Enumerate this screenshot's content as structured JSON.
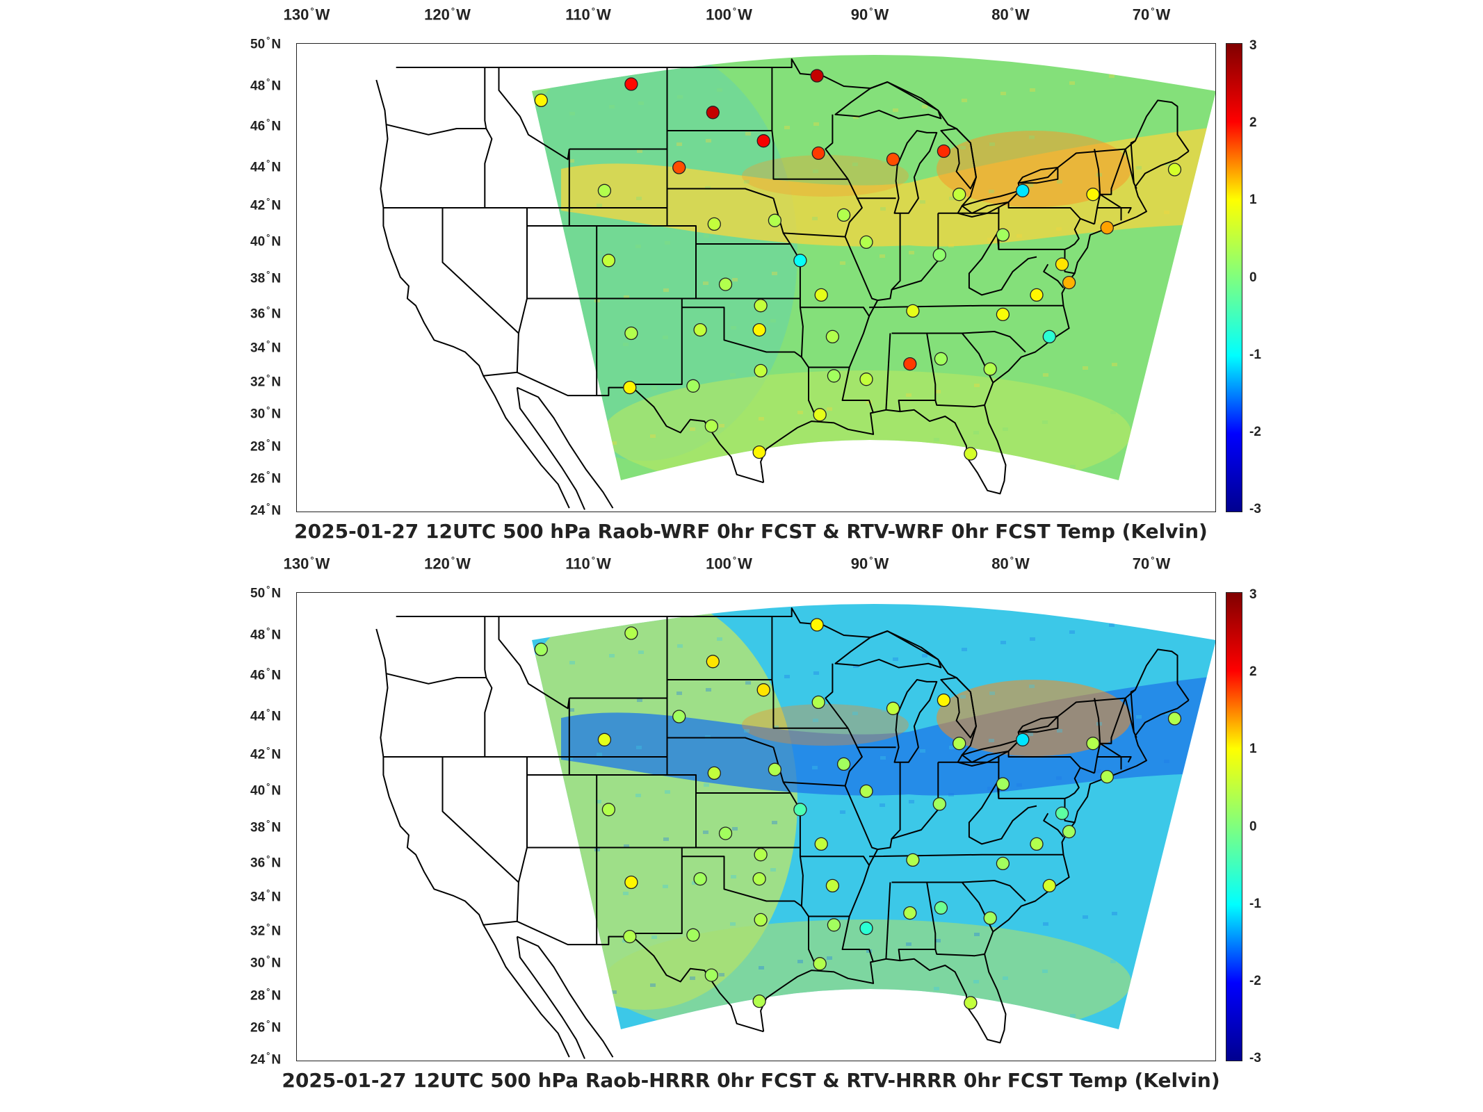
{
  "lon_labels": [
    "130",
    "120",
    "110",
    "100",
    "90",
    "80",
    "70"
  ],
  "lat_labels": [
    "50",
    "48",
    "46",
    "44",
    "42",
    "40",
    "38",
    "36",
    "34",
    "32",
    "30",
    "28",
    "26",
    "24"
  ],
  "lon_suffix": "W",
  "lat_suffix": "N",
  "degree_symbol": "°",
  "colorbar": {
    "ticks": [
      "3",
      "2",
      "1",
      "0",
      "-1",
      "-2",
      "-3"
    ],
    "colormap": "jet",
    "colors": [
      "#00008f",
      "#0000ff",
      "#00ffff",
      "#7fff7f",
      "#ffff00",
      "#ff0000",
      "#800000"
    ]
  },
  "panels": [
    {
      "title": "2025-01-27 12UTC 500 hPa Raob-WRF 0hr FCST & RTV-WRF 0hr FCST Temp (Kelvin)",
      "field_colors": {
        "base": "#84e07a",
        "west": "#6cd6a0",
        "band": "#f5d640",
        "hot": "#f59a2a",
        "south": "#b8e860"
      },
      "stations": [
        {
          "lon": -113.0,
          "lat": 47.4,
          "value": 0.8
        },
        {
          "lon": -106.6,
          "lat": 48.2,
          "value": 2.2
        },
        {
          "lon": -100.8,
          "lat": 46.8,
          "value": 2.6
        },
        {
          "lon": -97.2,
          "lat": 45.4,
          "value": 2.3
        },
        {
          "lon": -93.4,
          "lat": 48.6,
          "value": 2.6
        },
        {
          "lon": -93.3,
          "lat": 44.8,
          "value": 1.9
        },
        {
          "lon": -88.0,
          "lat": 44.5,
          "value": 1.8
        },
        {
          "lon": -84.4,
          "lat": 44.9,
          "value": 2.0
        },
        {
          "lon": -103.2,
          "lat": 44.1,
          "value": 1.8
        },
        {
          "lon": -108.5,
          "lat": 42.9,
          "value": 0.3
        },
        {
          "lon": -100.7,
          "lat": 41.1,
          "value": 0.4
        },
        {
          "lon": -96.4,
          "lat": 41.3,
          "value": 0.3
        },
        {
          "lon": -91.5,
          "lat": 41.6,
          "value": 0.3
        },
        {
          "lon": -83.3,
          "lat": 42.7,
          "value": 0.4
        },
        {
          "lon": -78.8,
          "lat": 42.9,
          "value": -0.9
        },
        {
          "lon": -73.8,
          "lat": 42.7,
          "value": 0.8
        },
        {
          "lon": -68.0,
          "lat": 44.0,
          "value": 0.5
        },
        {
          "lon": -72.8,
          "lat": 40.9,
          "value": 1.3
        },
        {
          "lon": -80.2,
          "lat": 40.5,
          "value": 0.2
        },
        {
          "lon": -76.0,
          "lat": 38.9,
          "value": 0.9
        },
        {
          "lon": -75.5,
          "lat": 37.9,
          "value": 1.2
        },
        {
          "lon": -77.8,
          "lat": 37.2,
          "value": 0.8
        },
        {
          "lon": -86.6,
          "lat": 36.3,
          "value": 0.6
        },
        {
          "lon": -80.2,
          "lat": 36.1,
          "value": 0.7
        },
        {
          "lon": -76.9,
          "lat": 34.8,
          "value": -0.5
        },
        {
          "lon": -81.1,
          "lat": 32.9,
          "value": 0.3
        },
        {
          "lon": -86.8,
          "lat": 33.2,
          "value": 1.9
        },
        {
          "lon": -84.6,
          "lat": 33.5,
          "value": 0.2
        },
        {
          "lon": -89.9,
          "lat": 32.3,
          "value": 0.4
        },
        {
          "lon": -92.2,
          "lat": 32.5,
          "value": 0.2
        },
        {
          "lon": -92.3,
          "lat": 34.8,
          "value": 0.3
        },
        {
          "lon": -89.9,
          "lat": 40.1,
          "value": 0.3
        },
        {
          "lon": -84.7,
          "lat": 39.4,
          "value": 0.1
        },
        {
          "lon": -93.1,
          "lat": 37.2,
          "value": 0.6
        },
        {
          "lon": -94.6,
          "lat": 39.1,
          "value": -0.7
        },
        {
          "lon": -97.4,
          "lat": 36.6,
          "value": 0.4
        },
        {
          "lon": -97.5,
          "lat": 35.2,
          "value": 0.8
        },
        {
          "lon": -101.7,
          "lat": 35.2,
          "value": 0.4
        },
        {
          "lon": -99.9,
          "lat": 37.8,
          "value": 0.3
        },
        {
          "lon": -106.6,
          "lat": 35.0,
          "value": 0.3
        },
        {
          "lon": -106.7,
          "lat": 31.8,
          "value": 0.8
        },
        {
          "lon": -102.2,
          "lat": 31.9,
          "value": 0.2
        },
        {
          "lon": -97.4,
          "lat": 32.8,
          "value": 0.4
        },
        {
          "lon": -100.9,
          "lat": 29.4,
          "value": 0.3
        },
        {
          "lon": -97.5,
          "lat": 27.8,
          "value": 0.8
        },
        {
          "lon": -93.2,
          "lat": 30.1,
          "value": 0.6
        },
        {
          "lon": -82.5,
          "lat": 27.7,
          "value": 0.5
        },
        {
          "lon": -108.2,
          "lat": 39.1,
          "value": 0.4
        }
      ]
    },
    {
      "title": "2025-01-27 12UTC 500 hPa Raob-HRRR 0hr FCST & RTV-HRRR 0hr FCST Temp (Kelvin)",
      "field_colors": {
        "base": "#3cc8e8",
        "west": "#c8e860",
        "band": "#1e78e8",
        "hot": "#f58a20",
        "south": "#a8e070"
      },
      "stations": [
        {
          "lon": -113.0,
          "lat": 47.4,
          "value": 0.2
        },
        {
          "lon": -106.6,
          "lat": 48.2,
          "value": 0.3
        },
        {
          "lon": -100.8,
          "lat": 46.8,
          "value": 0.9
        },
        {
          "lon": -97.2,
          "lat": 45.4,
          "value": 0.9
        },
        {
          "lon": -93.4,
          "lat": 48.6,
          "value": 0.8
        },
        {
          "lon": -93.3,
          "lat": 44.8,
          "value": 0.3
        },
        {
          "lon": -88.0,
          "lat": 44.5,
          "value": 0.4
        },
        {
          "lon": -84.4,
          "lat": 44.9,
          "value": 0.8
        },
        {
          "lon": -103.2,
          "lat": 44.1,
          "value": 0.2
        },
        {
          "lon": -108.5,
          "lat": 42.9,
          "value": 0.6
        },
        {
          "lon": -100.7,
          "lat": 41.1,
          "value": 0.4
        },
        {
          "lon": -96.4,
          "lat": 41.3,
          "value": 0.3
        },
        {
          "lon": -91.5,
          "lat": 41.6,
          "value": 0.2
        },
        {
          "lon": -83.3,
          "lat": 42.7,
          "value": 0.3
        },
        {
          "lon": -78.8,
          "lat": 42.9,
          "value": -0.9
        },
        {
          "lon": -73.8,
          "lat": 42.7,
          "value": 0.3
        },
        {
          "lon": -68.0,
          "lat": 44.0,
          "value": 0.3
        },
        {
          "lon": -72.8,
          "lat": 40.9,
          "value": 0.3
        },
        {
          "lon": -80.2,
          "lat": 40.5,
          "value": 0.2
        },
        {
          "lon": -76.0,
          "lat": 38.9,
          "value": -0.2
        },
        {
          "lon": -75.5,
          "lat": 37.9,
          "value": 0.2
        },
        {
          "lon": -77.8,
          "lat": 37.2,
          "value": 0.3
        },
        {
          "lon": -86.6,
          "lat": 36.3,
          "value": 0.3
        },
        {
          "lon": -80.2,
          "lat": 36.1,
          "value": 0.2
        },
        {
          "lon": -76.9,
          "lat": 34.8,
          "value": 0.5
        },
        {
          "lon": -81.1,
          "lat": 32.9,
          "value": 0.2
        },
        {
          "lon": -86.8,
          "lat": 33.2,
          "value": 0.3
        },
        {
          "lon": -84.6,
          "lat": 33.5,
          "value": -0.1
        },
        {
          "lon": -89.9,
          "lat": 32.3,
          "value": -0.5
        },
        {
          "lon": -92.2,
          "lat": 32.5,
          "value": 0.2
        },
        {
          "lon": -92.3,
          "lat": 34.8,
          "value": 0.4
        },
        {
          "lon": -89.9,
          "lat": 40.1,
          "value": 0.3
        },
        {
          "lon": -84.7,
          "lat": 39.4,
          "value": 0.2
        },
        {
          "lon": -93.1,
          "lat": 37.2,
          "value": 0.4
        },
        {
          "lon": -94.6,
          "lat": 39.1,
          "value": -0.3
        },
        {
          "lon": -97.4,
          "lat": 36.6,
          "value": 0.3
        },
        {
          "lon": -97.5,
          "lat": 35.2,
          "value": 0.3
        },
        {
          "lon": -101.7,
          "lat": 35.2,
          "value": 0.2
        },
        {
          "lon": -99.9,
          "lat": 37.8,
          "value": 0.2
        },
        {
          "lon": -106.6,
          "lat": 35.0,
          "value": 0.8
        },
        {
          "lon": -106.7,
          "lat": 31.8,
          "value": 0.3
        },
        {
          "lon": -102.2,
          "lat": 31.9,
          "value": 0.2
        },
        {
          "lon": -97.4,
          "lat": 32.8,
          "value": 0.3
        },
        {
          "lon": -100.9,
          "lat": 29.4,
          "value": 0.2
        },
        {
          "lon": -97.5,
          "lat": 27.8,
          "value": 0.3
        },
        {
          "lon": -93.2,
          "lat": 30.1,
          "value": 0.3
        },
        {
          "lon": -82.5,
          "lat": 27.7,
          "value": 0.4
        },
        {
          "lon": -108.2,
          "lat": 39.1,
          "value": 0.3
        }
      ]
    }
  ]
}
